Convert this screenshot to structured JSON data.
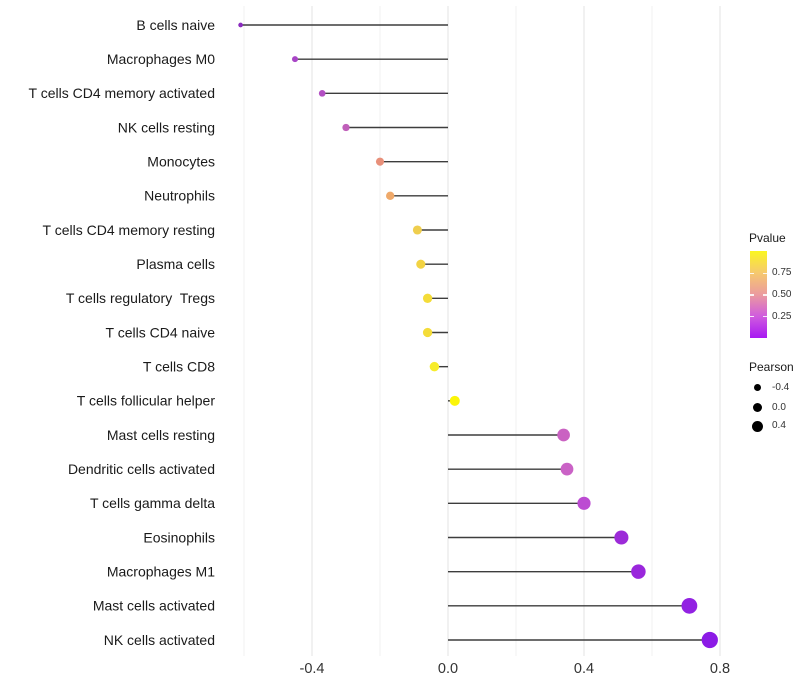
{
  "chart_data": {
    "type": "lollipop",
    "orientation": "horizontal",
    "title": "",
    "xlabel": "",
    "ylabel": "",
    "baseline": 0.0,
    "xlim": [
      -0.68,
      0.85
    ],
    "x_ticks": [
      -0.4,
      0.0,
      0.4,
      0.8
    ],
    "x_tick_labels": [
      "-0.4",
      "0.0",
      "0.4",
      "0.8"
    ],
    "x_minor_gridlines": [
      -0.6,
      -0.2,
      0.2,
      0.6
    ],
    "grid": "vertical-only",
    "rows": [
      {
        "label": "B cells naive",
        "pearson": -0.61,
        "pvalue": 0.02,
        "color": "#8a2bbe"
      },
      {
        "label": "Macrophages M0",
        "pearson": -0.45,
        "pvalue": 0.12,
        "color": "#a845c6"
      },
      {
        "label": "T cells CD4 memory activated",
        "pearson": -0.37,
        "pvalue": 0.16,
        "color": "#b350c3"
      },
      {
        "label": "NK cells resting",
        "pearson": -0.3,
        "pvalue": 0.3,
        "color": "#c05fba"
      },
      {
        "label": "Monocytes",
        "pearson": -0.2,
        "pvalue": 0.55,
        "color": "#e8907a"
      },
      {
        "label": "Neutrophils",
        "pearson": -0.17,
        "pvalue": 0.62,
        "color": "#efa96a"
      },
      {
        "label": "T cells CD4 memory resting",
        "pearson": -0.09,
        "pvalue": 0.78,
        "color": "#efce4e"
      },
      {
        "label": "Plasma cells",
        "pearson": -0.08,
        "pvalue": 0.82,
        "color": "#f2d343"
      },
      {
        "label": "T cells regulatory  Tregs",
        "pearson": -0.06,
        "pvalue": 0.85,
        "color": "#f4dc39"
      },
      {
        "label": "T cells CD4 naive",
        "pearson": -0.06,
        "pvalue": 0.86,
        "color": "#f4dc39"
      },
      {
        "label": "T cells CD8",
        "pearson": -0.04,
        "pvalue": 0.92,
        "color": "#f7ec2b"
      },
      {
        "label": "T cells follicular helper",
        "pearson": 0.02,
        "pvalue": 0.97,
        "color": "#fbf508"
      },
      {
        "label": "Mast cells resting",
        "pearson": 0.34,
        "pvalue": 0.27,
        "color": "#ca62c2"
      },
      {
        "label": "Dendritic cells activated",
        "pearson": 0.35,
        "pvalue": 0.26,
        "color": "#ca62c6"
      },
      {
        "label": "T cells gamma delta",
        "pearson": 0.4,
        "pvalue": 0.2,
        "color": "#bc4bd2"
      },
      {
        "label": "Eosinophils",
        "pearson": 0.51,
        "pvalue": 0.08,
        "color": "#9c2bd8"
      },
      {
        "label": "Macrophages M1",
        "pearson": 0.56,
        "pvalue": 0.07,
        "color": "#9a27dc"
      },
      {
        "label": "Mast cells activated",
        "pearson": 0.71,
        "pvalue": 0.05,
        "color": "#9222e2"
      },
      {
        "label": "NK cells activated",
        "pearson": 0.77,
        "pvalue": 0.03,
        "color": "#8c1be6"
      }
    ],
    "colors": {
      "stick": "#3d3d3d",
      "grid_major": "#e3e3e3",
      "grid_minor": "#f0f0f0",
      "axis_tick_text": "#333333",
      "category_text": "#1a1a1a"
    }
  },
  "legend": {
    "pvalue": {
      "title": "Pvalue",
      "ticks": [
        "0.75",
        "0.50",
        "0.25"
      ],
      "gradient_top_to_bottom": [
        "#faf621",
        "#f6c96e",
        "#eb9b9e",
        "#d05cde",
        "#a818f2"
      ]
    },
    "pearson": {
      "title": "Pearson",
      "items": [
        {
          "label": "-0.4",
          "value": -0.4
        },
        {
          "label": "0.0",
          "value": 0.0
        },
        {
          "label": "0.4",
          "value": 0.4
        }
      ],
      "dot_color": "#000000"
    }
  }
}
